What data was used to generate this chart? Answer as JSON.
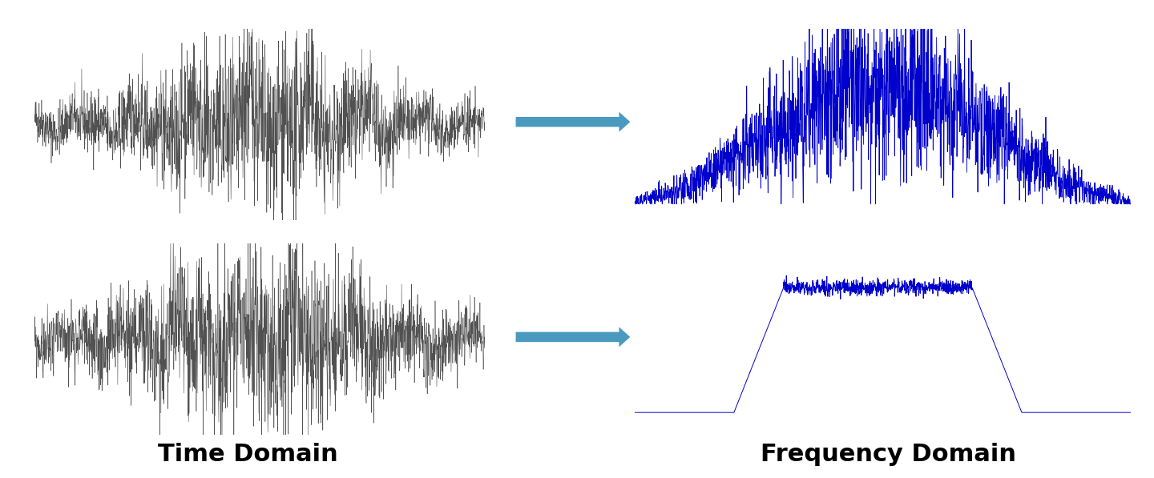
{
  "title_time": "Time Domain",
  "title_freq": "Frequency Domain",
  "title_fontsize": 22,
  "title_fontweight": "bold",
  "bg_color": "#ffffff",
  "time_signal_color": "#333333",
  "freq_signal_color": "#0000cc",
  "arrow_color": "#4a9abf",
  "seed1": 42,
  "seed2": 99,
  "n_samples": 2000,
  "n_samples2": 2000
}
